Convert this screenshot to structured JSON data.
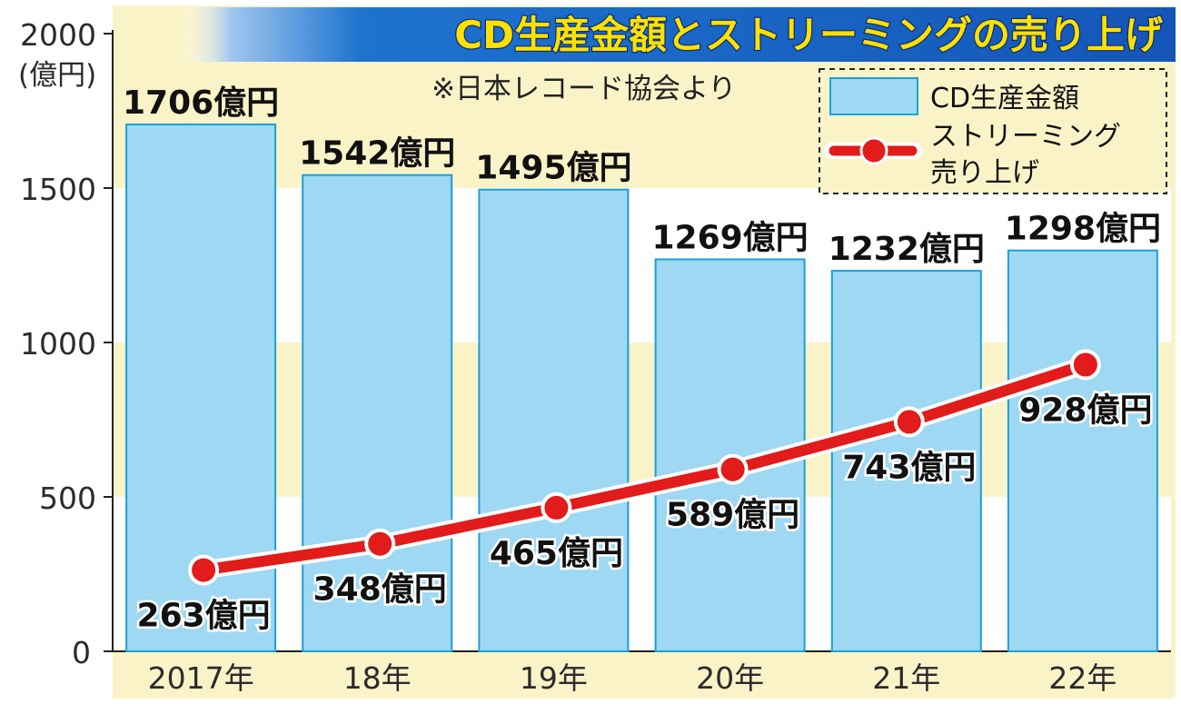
{
  "colors": {
    "outer_bg": "#ffffff",
    "frame_bg": "#fbf3c8",
    "band_white": "#ffffff",
    "bar_fill": "#9fd8f2",
    "bar_stroke": "#1aa0d8",
    "line_color": "#e21b1b",
    "title_bar_blue": "#1565c0",
    "title_text": "#ffe000",
    "title_stroke": "#0a2f7a"
  },
  "title": "CD生産金額とストリーミングの売り上げ",
  "source_note": "※日本レコード協会より",
  "y_axis": {
    "unit_label": "(億円)",
    "ticks": [
      "2000",
      "1500",
      "1000",
      "500",
      "0"
    ]
  },
  "legend": {
    "cd_label": "CD生産金額",
    "streaming_label_line1": "ストリーミング",
    "streaming_label_line2": "売り上げ",
    "placement": "top-right"
  },
  "chart_data": {
    "type": "bar",
    "title": "CD生産金額とストリーミングの売り上げ",
    "categories": [
      "2017年",
      "18年",
      "19年",
      "20年",
      "21年",
      "22年"
    ],
    "ylim": [
      0,
      2000
    ],
    "ylabel": "(億円)",
    "series": [
      {
        "name": "CD生産金額",
        "type": "bar",
        "values": [
          1706,
          1542,
          1495,
          1269,
          1232,
          1298
        ],
        "labels": [
          "1706億円",
          "1542億円",
          "1495億円",
          "1269億円",
          "1232億円",
          "1298億円"
        ]
      },
      {
        "name": "ストリーミング売り上げ",
        "type": "line",
        "values": [
          263,
          348,
          465,
          589,
          743,
          928
        ],
        "labels": [
          "263億円",
          "348億円",
          "465億円",
          "589億円",
          "743億円",
          "928億円"
        ]
      }
    ]
  }
}
